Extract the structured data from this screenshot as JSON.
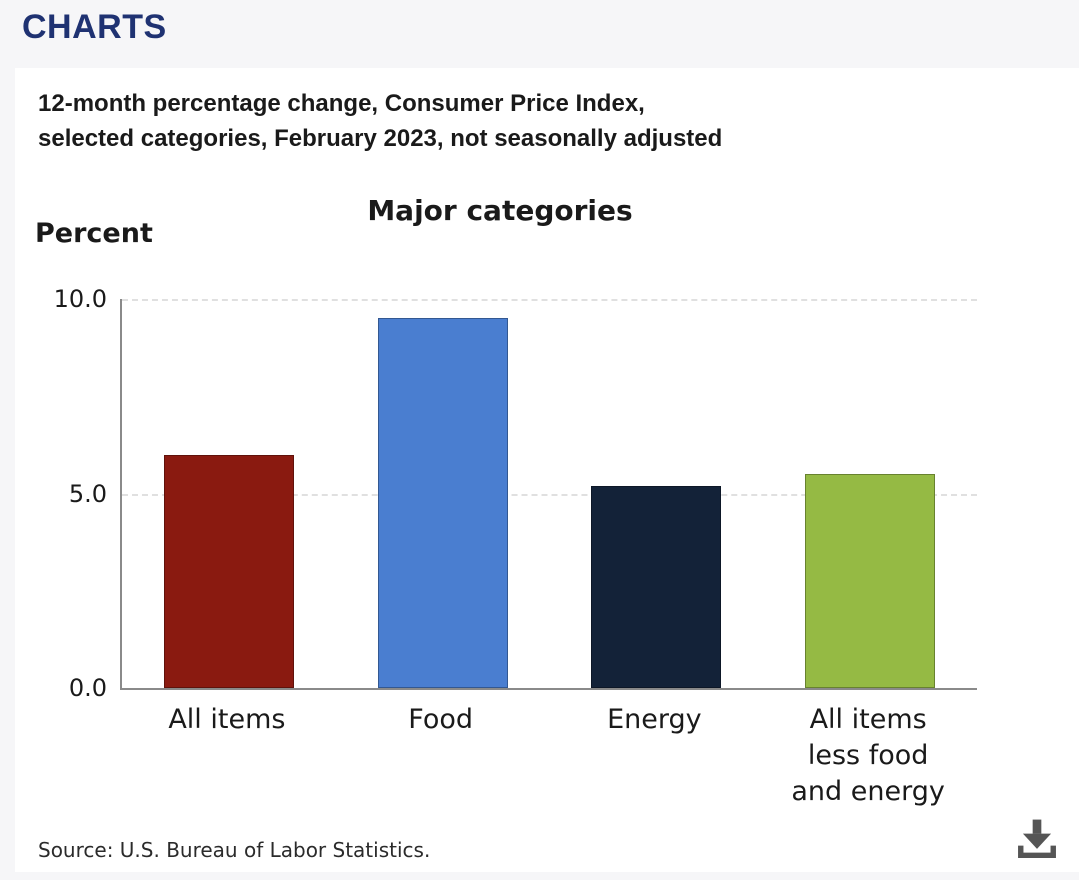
{
  "page": {
    "header": "CHARTS",
    "source": "Source: U.S. Bureau of Labor Statistics."
  },
  "chart_data": {
    "type": "bar",
    "title": "Major categories",
    "subtitle_lines": [
      "12-month percentage change, Consumer Price Index,",
      "selected categories, February 2023, not seasonally adjusted"
    ],
    "ylabel": "Percent",
    "xlabel": "",
    "categories": [
      "All items",
      "Food",
      "Energy",
      "All items\nless food\nand energy"
    ],
    "values": [
      6.0,
      9.5,
      5.2,
      5.5
    ],
    "bar_colors": [
      "#8a1a10",
      "#4a7ed0",
      "#132238",
      "#95ba44"
    ],
    "ylim": [
      0,
      10
    ],
    "yticks": [
      0,
      5,
      10
    ],
    "ytick_labels": [
      "0.0",
      "5.0",
      "10.0"
    ],
    "grid": "horizontal dashed gridlines at 5.0 and 10.0",
    "legend": "none"
  },
  "icons": {
    "download": "download-icon"
  },
  "colors": {
    "header_text": "#1f3272",
    "card_bg": "#ffffff",
    "page_bg": "#f6f6f8",
    "axis": "#8a8a8a",
    "icon": "#555555"
  }
}
